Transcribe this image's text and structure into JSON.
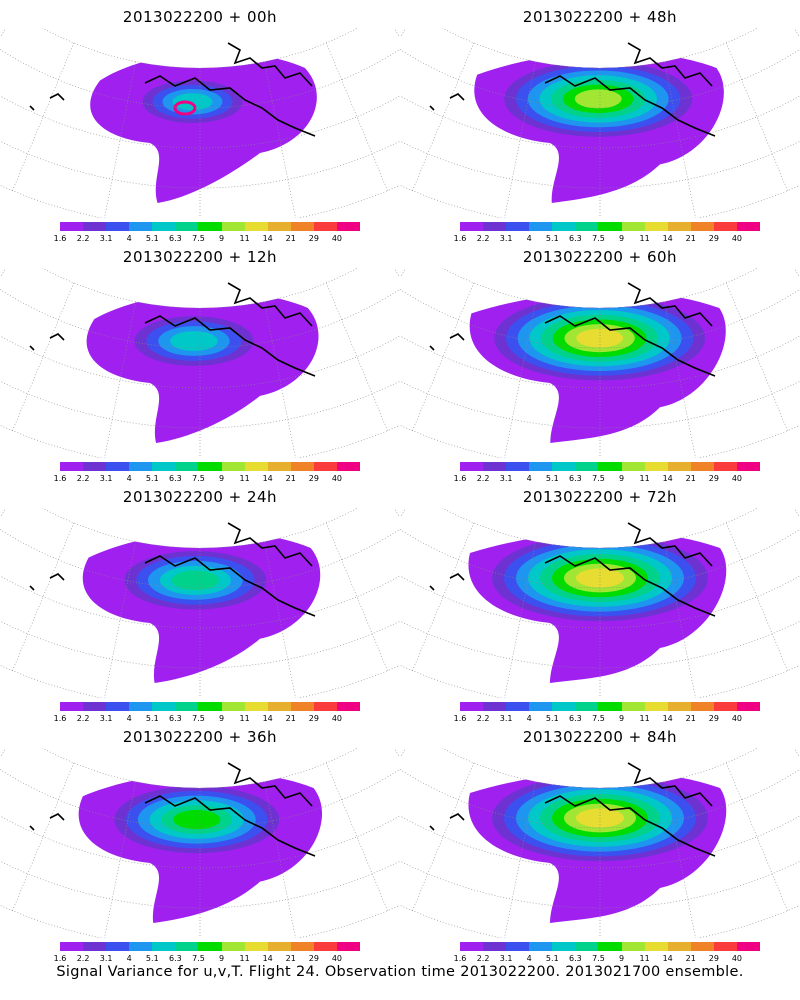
{
  "panels": [
    {
      "title": "2013022200 + 00h",
      "lead_hours": 0
    },
    {
      "title": "2013022200 + 48h",
      "lead_hours": 48
    },
    {
      "title": "2013022200 + 12h",
      "lead_hours": 12
    },
    {
      "title": "2013022200 + 60h",
      "lead_hours": 60
    },
    {
      "title": "2013022200 + 24h",
      "lead_hours": 24
    },
    {
      "title": "2013022200 + 72h",
      "lead_hours": 72
    },
    {
      "title": "2013022200 + 36h",
      "lead_hours": 36
    },
    {
      "title": "2013022200 + 84h",
      "lead_hours": 84
    }
  ],
  "colorbar": {
    "labels": [
      "1.6",
      "2.2",
      "3.1",
      "4",
      "5.1",
      "6.3",
      "7.5",
      "9",
      "11",
      "14",
      "21",
      "29",
      "40"
    ],
    "colors": [
      "#a020f0",
      "#6e32d2",
      "#3c50f0",
      "#1e96f0",
      "#00c8c8",
      "#00d28c",
      "#00dc00",
      "#a0e632",
      "#e6dc32",
      "#e6af2d",
      "#f08228",
      "#fa3c3c",
      "#f00082"
    ]
  },
  "footer": "Signal Variance for u,v,T. Flight 24. Observation time 2013022200. 2013021700 ensemble."
}
